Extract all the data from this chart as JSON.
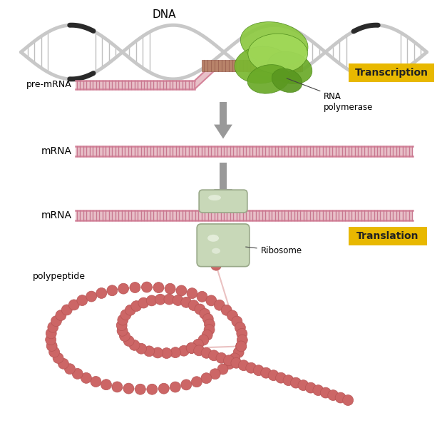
{
  "bg_color": "#ffffff",
  "dna_helix_color": "#c8c8c8",
  "dna_dark_color": "#2a2a2a",
  "mrna_pink": "#d4849a",
  "mrna_fill": "#e8c0c8",
  "mrna_stripe": "#c87890",
  "rna_pol_greens": [
    "#8cc840",
    "#7ab830",
    "#6aa828",
    "#9ad850",
    "#5a9820"
  ],
  "ribosome_fill": "#c8d8b8",
  "ribosome_edge": "#98a888",
  "ribosome_highlight": "#e8f0e0",
  "polypeptide_color": "#cc6666",
  "polypeptide_edge": "#b85555",
  "arrow_color": "#999999",
  "label_color": "#000000",
  "transcription_bg": "#e8b800",
  "translation_bg": "#e8b800",
  "title_dna": "DNA",
  "label_premrna": "pre-mRNA",
  "label_mrna1": "mRNA",
  "label_mrna2": "mRNA",
  "label_rna_pol": "RNA\npolymerase",
  "label_ribosome": "Ribosome",
  "label_polypeptide": "polypeptide",
  "label_transcription": "Transcription",
  "label_translation": "Translation",
  "fig_w": 6.27,
  "fig_h": 6.0,
  "dpi": 100
}
